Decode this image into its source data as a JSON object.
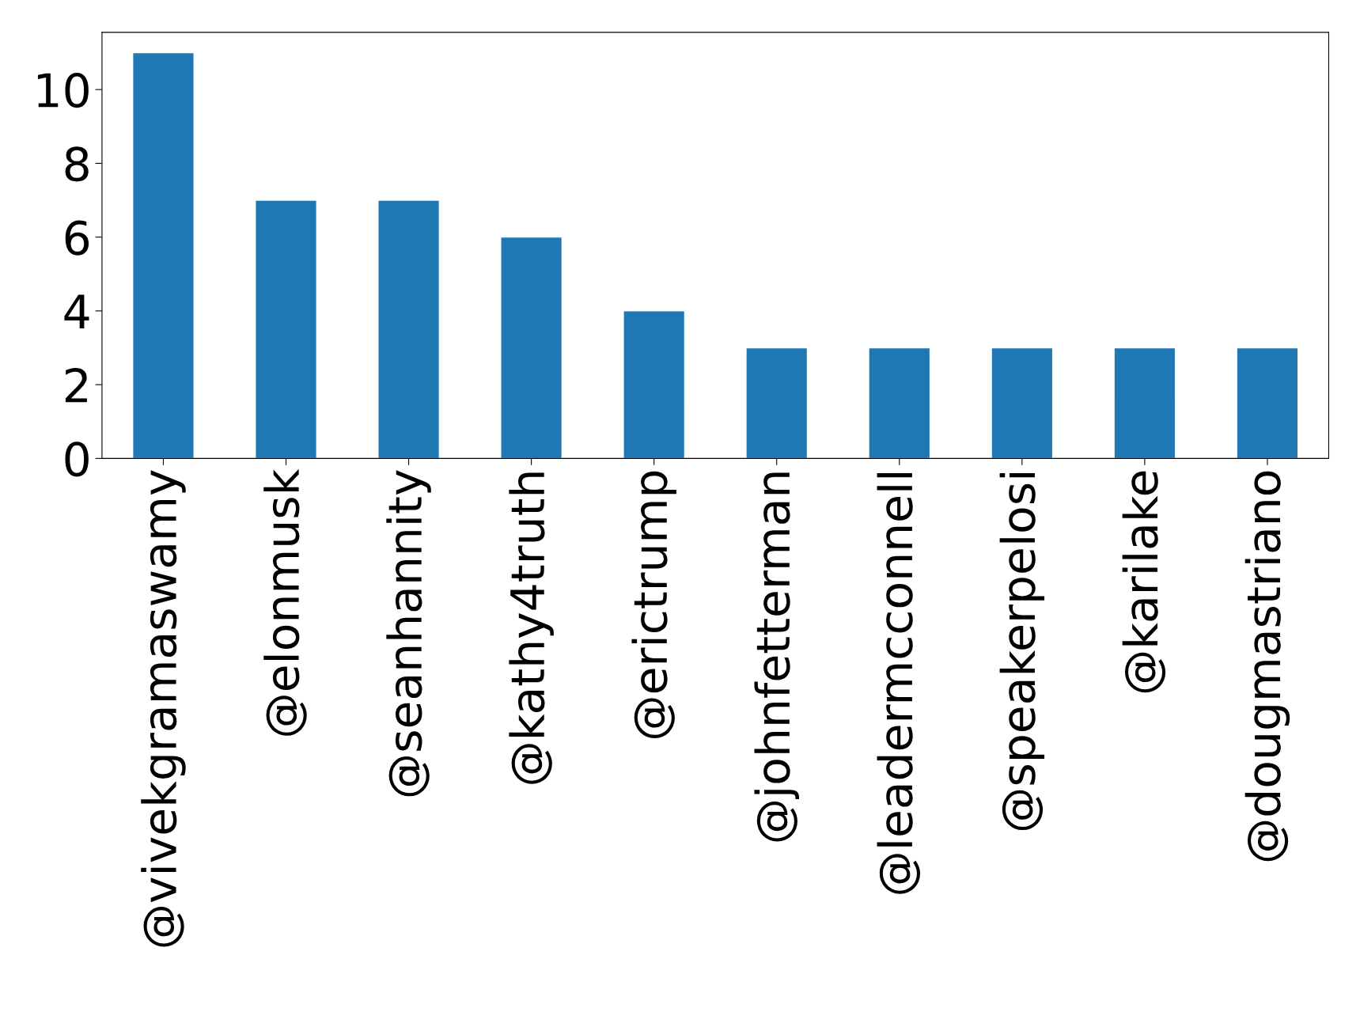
{
  "chart_data": {
    "type": "bar",
    "categories": [
      "@vivekgramaswamy",
      "@elonmusk",
      "@seanhannity",
      "@kathy4truth",
      "@erictrump",
      "@johnfetterman",
      "@leadermcconnell",
      "@speakerpelosi",
      "@karilake",
      "@dougmastriano"
    ],
    "values": [
      11,
      7,
      7,
      6,
      4,
      3,
      3,
      3,
      3,
      3
    ],
    "color": "#1f77b4",
    "ylim": [
      0,
      11.55
    ],
    "yticks": [
      0,
      2,
      4,
      6,
      8,
      10
    ],
    "grid": false
  }
}
